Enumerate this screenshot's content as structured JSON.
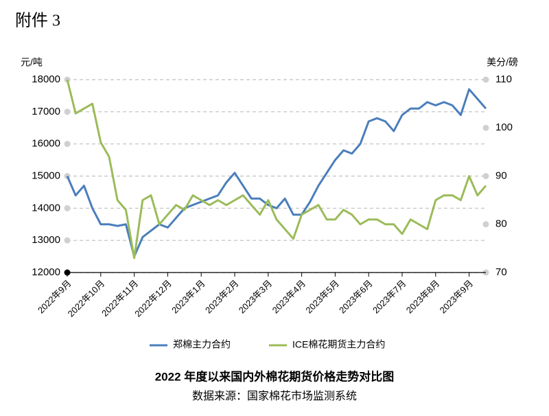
{
  "chart_data": {
    "type": "line",
    "header": "附件 3",
    "y_label": "元/吨",
    "y2_label": "美分/磅",
    "title": "2022 年度以来国内外棉花期货价格走势对比图",
    "source": "数据来源：国家棉花市场监测系统",
    "x": [
      0,
      0.25,
      0.5,
      0.75,
      1,
      1.25,
      1.5,
      1.75,
      2,
      2.25,
      2.5,
      2.75,
      3,
      3.25,
      3.5,
      3.75,
      4,
      4.25,
      4.5,
      4.75,
      5,
      5.25,
      5.5,
      5.75,
      6,
      6.25,
      6.5,
      6.75,
      7,
      7.25,
      7.5,
      7.75,
      8,
      8.25,
      8.5,
      8.75,
      9,
      9.25,
      9.5,
      9.75,
      10,
      10.25,
      10.5,
      10.75,
      11,
      11.25,
      11.5,
      11.75,
      12,
      12.25,
      12.5
    ],
    "xlim": [
      0,
      12.5
    ],
    "xticks": [
      {
        "value": 0,
        "label": "2022年9月"
      },
      {
        "value": 1,
        "label": "2022年10月"
      },
      {
        "value": 2,
        "label": "2022年11月"
      },
      {
        "value": 3,
        "label": "2022年12月"
      },
      {
        "value": 4,
        "label": "2023年1月"
      },
      {
        "value": 5,
        "label": "2023年2月"
      },
      {
        "value": 6,
        "label": "2023年3月"
      },
      {
        "value": 7,
        "label": "2023年4月"
      },
      {
        "value": 8,
        "label": "2023年5月"
      },
      {
        "value": 9,
        "label": "2023年6月"
      },
      {
        "value": 10,
        "label": "2023年7月"
      },
      {
        "value": 11,
        "label": "2023年8月"
      },
      {
        "value": 12,
        "label": "2023年9月"
      }
    ],
    "ylim": [
      12000,
      18000
    ],
    "yticks": [
      12000,
      13000,
      14000,
      15000,
      16000,
      17000,
      18000
    ],
    "y2lim": [
      70,
      110
    ],
    "y2ticks": [
      70,
      80,
      90,
      100,
      110
    ],
    "grid": true,
    "series": [
      {
        "name": "郑棉主力合约",
        "color": "#4a7ebb",
        "values": [
          15000,
          14400,
          14700,
          14000,
          13500,
          13500,
          13450,
          13500,
          12500,
          13100,
          13300,
          13500,
          13400,
          13700,
          14000,
          14100,
          14200,
          14300,
          14400,
          14800,
          15100,
          14700,
          14300,
          14300,
          14100,
          14000,
          14300,
          13800,
          13800,
          14200,
          14700,
          15100,
          15500,
          15800,
          15700,
          16000,
          16700,
          16800,
          16700,
          16400,
          16900,
          17100,
          17100,
          17300,
          17200,
          17300,
          17200,
          16900,
          17700,
          17400,
          17100
        ]
      },
      {
        "name": "ICE棉花期货主力合约",
        "color": "#9bbb59",
        "axis": "y2",
        "values": [
          110,
          103,
          104,
          105,
          97,
          94,
          85,
          83,
          73,
          85,
          86,
          80,
          82,
          84,
          83,
          86,
          85,
          84,
          85,
          84,
          85,
          86,
          84,
          82,
          85,
          81,
          79,
          77,
          82,
          83,
          84,
          81,
          81,
          83,
          82,
          80,
          81,
          81,
          80,
          80,
          78,
          81,
          80,
          79,
          85,
          86,
          86,
          85,
          90,
          86,
          88
        ]
      }
    ]
  }
}
